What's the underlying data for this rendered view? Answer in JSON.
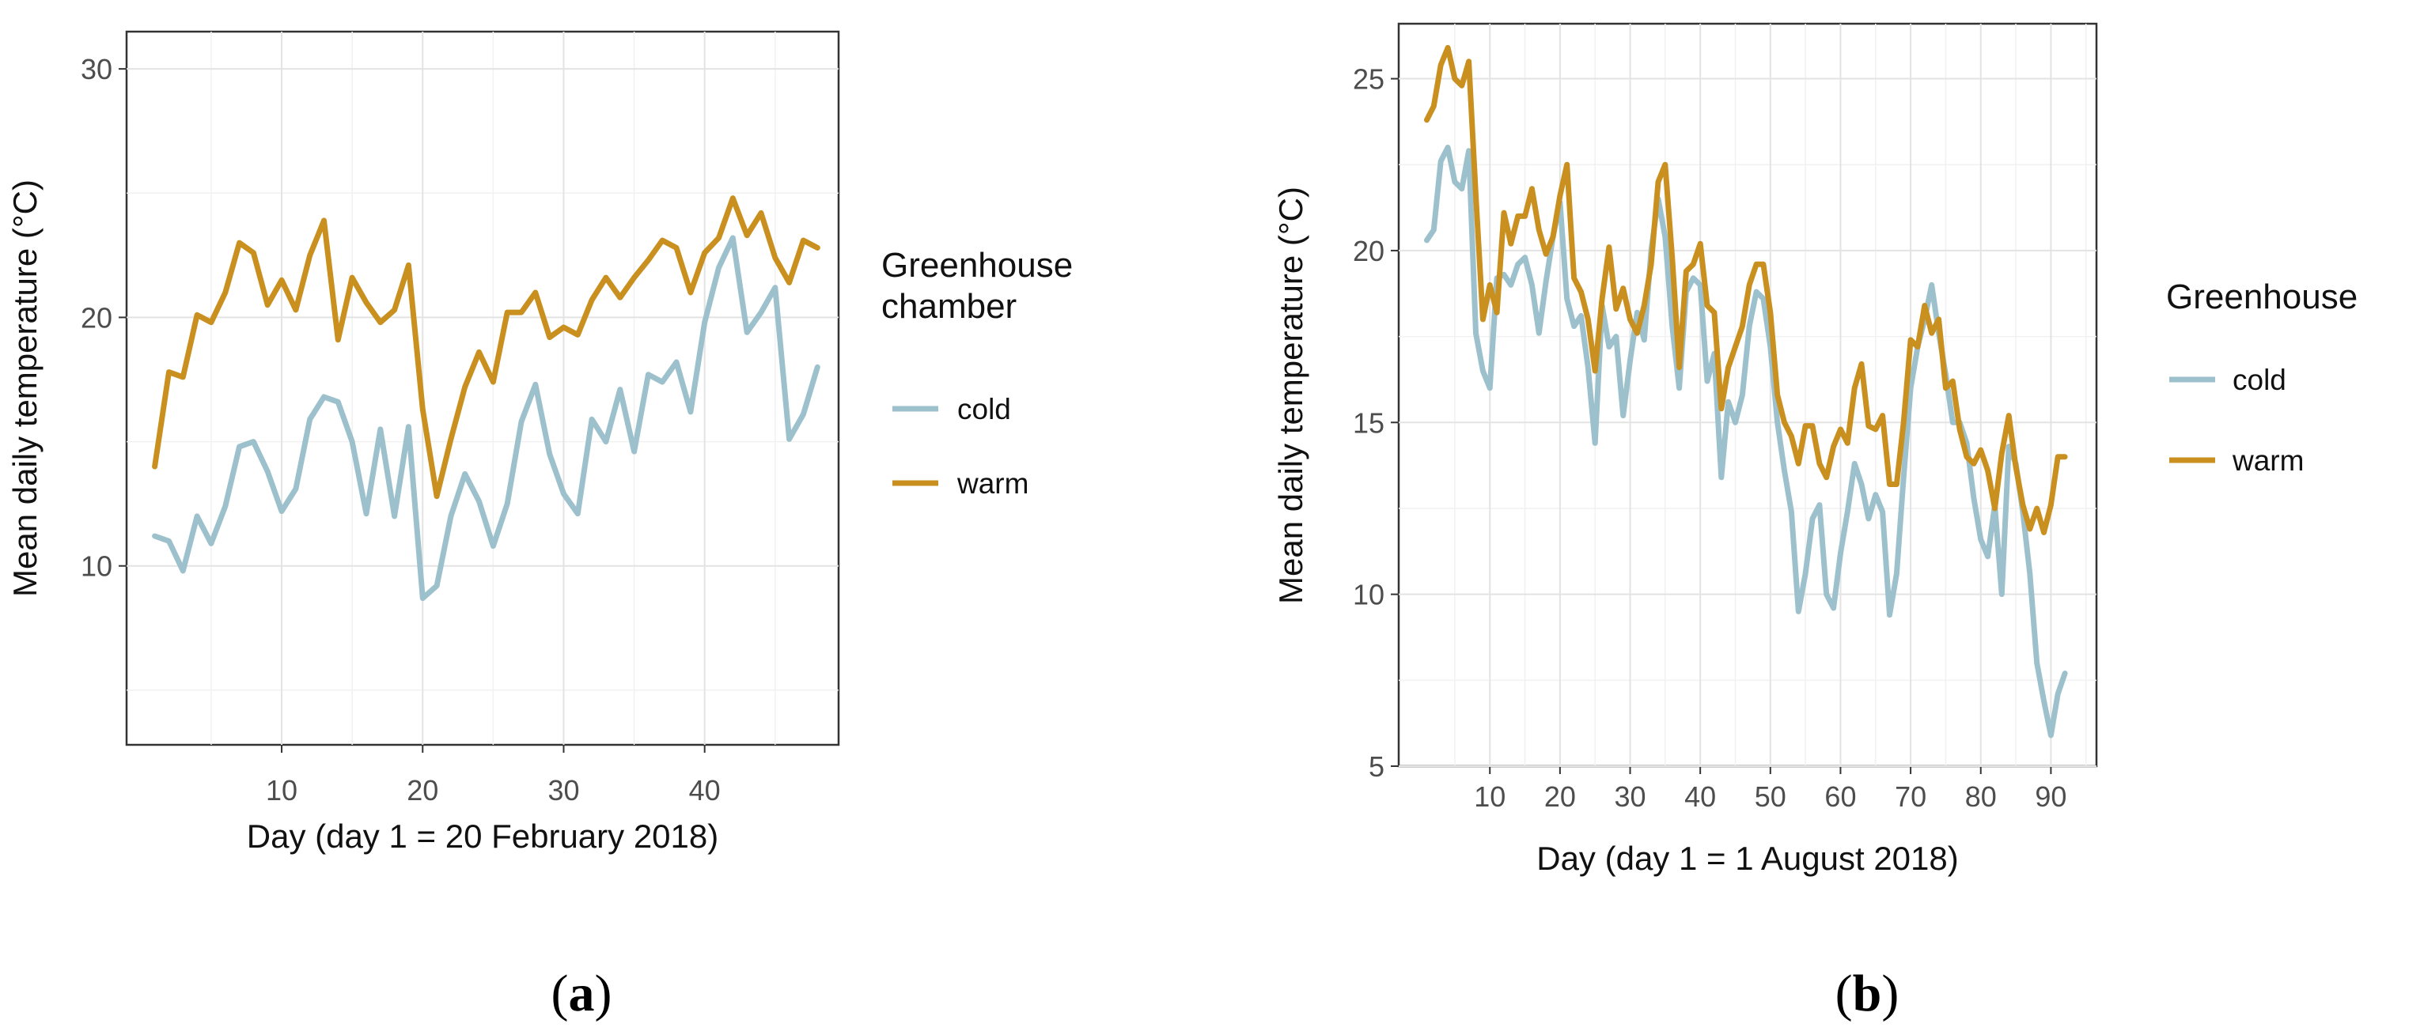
{
  "chart_data": [
    {
      "type": "line",
      "panel_label": "a",
      "xlabel": "Day (day 1 = 20 February 2018)",
      "ylabel": "Mean daily temperature (°C)",
      "xlim": [
        -1,
        49.5
      ],
      "ylim": [
        2.8,
        31.5
      ],
      "xticks": [
        10,
        20,
        30,
        40
      ],
      "yticks": [
        10,
        20,
        30
      ],
      "minor_xticks": [
        5,
        15,
        25,
        35,
        45
      ],
      "minor_yticks": [
        5,
        15,
        25
      ],
      "grid": true,
      "legend": {
        "title": "Greenhouse\nchamber",
        "position": "right"
      },
      "x": [
        1,
        2,
        3,
        4,
        5,
        6,
        7,
        8,
        9,
        10,
        11,
        12,
        13,
        14,
        15,
        16,
        17,
        18,
        19,
        20,
        21,
        22,
        23,
        24,
        25,
        26,
        27,
        28,
        29,
        30,
        31,
        32,
        33,
        34,
        35,
        36,
        37,
        38,
        39,
        40,
        41,
        42,
        43,
        44,
        45,
        46,
        47,
        48
      ],
      "series": [
        {
          "name": "cold",
          "color": "#9dc1cc",
          "values": [
            11.2,
            11.0,
            9.8,
            12.0,
            10.9,
            12.4,
            14.8,
            15.0,
            13.8,
            12.2,
            13.1,
            15.9,
            16.8,
            16.6,
            15.0,
            12.1,
            15.5,
            12.0,
            15.6,
            8.7,
            9.2,
            12.0,
            13.7,
            12.6,
            10.8,
            12.5,
            15.8,
            17.3,
            14.5,
            12.9,
            12.1,
            15.9,
            15.0,
            17.1,
            14.6,
            17.7,
            17.4,
            18.2,
            16.2,
            19.8,
            22.0,
            23.2,
            19.4,
            20.2,
            21.2,
            15.1,
            16.1,
            18.0
          ]
        },
        {
          "name": "warm",
          "color": "#c9901f",
          "values": [
            14.0,
            17.8,
            17.6,
            20.1,
            19.8,
            21.0,
            23.0,
            22.6,
            20.5,
            21.5,
            20.3,
            22.5,
            23.9,
            19.1,
            21.6,
            20.6,
            19.8,
            20.3,
            22.1,
            16.3,
            12.8,
            15.1,
            17.2,
            18.6,
            17.4,
            20.2,
            20.2,
            21.0,
            19.2,
            19.6,
            19.3,
            20.7,
            21.6,
            20.8,
            21.6,
            22.3,
            23.1,
            22.8,
            21.0,
            22.6,
            23.2,
            24.8,
            23.3,
            24.2,
            22.4,
            21.4,
            23.1,
            22.8
          ]
        }
      ]
    },
    {
      "type": "line",
      "panel_label": "b",
      "xlabel": "Day (day 1 = 1 August 2018)",
      "ylabel": "Mean daily temperature (°C)",
      "xlim": [
        -3,
        96.5
      ],
      "ylim": [
        5,
        26.6
      ],
      "xticks": [
        10,
        20,
        30,
        40,
        50,
        60,
        70,
        80,
        90
      ],
      "yticks": [
        5,
        10,
        15,
        20,
        25
      ],
      "minor_xticks": [
        5,
        15,
        25,
        35,
        45,
        55,
        65,
        75,
        85,
        95
      ],
      "minor_yticks": [
        7.5,
        12.5,
        17.5,
        22.5
      ],
      "grid": true,
      "legend": {
        "title": "Greenhouse",
        "position": "right"
      },
      "x": [
        1,
        2,
        3,
        4,
        5,
        6,
        7,
        8,
        9,
        10,
        11,
        12,
        13,
        14,
        15,
        16,
        17,
        18,
        19,
        20,
        21,
        22,
        23,
        24,
        25,
        26,
        27,
        28,
        29,
        30,
        31,
        32,
        33,
        34,
        35,
        36,
        37,
        38,
        39,
        40,
        41,
        42,
        43,
        44,
        45,
        46,
        47,
        48,
        49,
        50,
        51,
        52,
        53,
        54,
        55,
        56,
        57,
        58,
        59,
        60,
        61,
        62,
        63,
        64,
        65,
        66,
        67,
        68,
        69,
        70,
        71,
        72,
        73,
        74,
        75,
        76,
        77,
        78,
        79,
        80,
        81,
        82,
        83,
        84,
        85,
        86,
        87,
        88,
        89,
        90,
        91,
        92
      ],
      "series": [
        {
          "name": "cold",
          "color": "#9dc1cc",
          "values": [
            20.3,
            20.6,
            22.6,
            23.0,
            22.0,
            21.8,
            22.9,
            17.6,
            16.5,
            16.0,
            19.2,
            19.3,
            19.0,
            19.6,
            19.8,
            19.0,
            17.6,
            19.1,
            20.4,
            21.4,
            18.6,
            17.8,
            18.1,
            16.6,
            14.4,
            18.4,
            17.2,
            17.5,
            15.2,
            16.8,
            18.2,
            17.4,
            20.0,
            21.5,
            20.4,
            17.8,
            16.0,
            18.8,
            19.2,
            19.0,
            16.2,
            17.0,
            13.4,
            15.6,
            15.0,
            15.8,
            17.8,
            18.8,
            18.6,
            17.2,
            15.0,
            13.6,
            12.4,
            9.5,
            10.6,
            12.2,
            12.6,
            10.0,
            9.6,
            11.2,
            12.4,
            13.8,
            13.2,
            12.2,
            12.9,
            12.4,
            9.4,
            10.6,
            13.4,
            16.0,
            17.2,
            18.0,
            19.0,
            17.6,
            16.4,
            15.0,
            15.0,
            14.4,
            12.8,
            11.6,
            11.1,
            12.6,
            10.0,
            14.3,
            13.8,
            12.4,
            10.6,
            8.0,
            6.9,
            5.9,
            7.1,
            7.7
          ]
        },
        {
          "name": "warm",
          "color": "#c9901f",
          "values": [
            23.8,
            24.2,
            25.4,
            25.9,
            25.0,
            24.8,
            25.5,
            21.6,
            18.0,
            19.0,
            18.2,
            21.1,
            20.2,
            21.0,
            21.0,
            21.8,
            20.6,
            19.9,
            20.4,
            21.6,
            22.5,
            19.2,
            18.8,
            18.0,
            16.5,
            18.6,
            20.1,
            18.3,
            18.9,
            18.0,
            17.6,
            18.4,
            19.6,
            22.0,
            22.5,
            19.8,
            16.6,
            19.4,
            19.6,
            20.2,
            18.4,
            18.2,
            15.4,
            16.6,
            17.2,
            17.8,
            19.0,
            19.6,
            19.6,
            18.2,
            15.8,
            15.0,
            14.6,
            13.8,
            14.9,
            14.9,
            13.8,
            13.4,
            14.3,
            14.8,
            14.4,
            16.0,
            16.7,
            14.9,
            14.8,
            15.2,
            13.2,
            13.2,
            15.0,
            17.4,
            17.2,
            18.4,
            17.6,
            18.0,
            16.0,
            16.2,
            14.8,
            14.0,
            13.8,
            14.2,
            13.6,
            12.5,
            14.1,
            15.2,
            13.7,
            12.6,
            11.9,
            12.5,
            11.8,
            12.6,
            14.0,
            14.0
          ]
        }
      ]
    }
  ]
}
